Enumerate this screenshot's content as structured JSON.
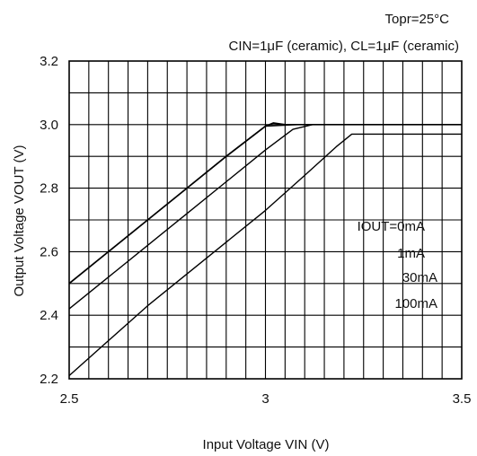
{
  "chart_data": {
    "type": "line",
    "conditions": [
      "Topr=25°C",
      "CIN=1μF (ceramic), CL=1μF (ceramic)"
    ],
    "xlabel": "Input Voltage VIN (V)",
    "ylabel": "Output Voltage VOUT (V)",
    "xlim": [
      2.5,
      3.5
    ],
    "ylim": [
      2.2,
      3.2
    ],
    "x_ticks": [
      2.5,
      3.0,
      3.5
    ],
    "x_tick_labels": [
      "2.5",
      "3",
      "3.5"
    ],
    "y_ticks": [
      2.2,
      2.4,
      2.6,
      2.8,
      3.0,
      3.2
    ],
    "y_tick_labels": [
      "2.2",
      "2.4",
      "2.6",
      "2.8",
      "3.0",
      "3.2"
    ],
    "x_grid_step": 0.05,
    "y_grid_step": 0.1,
    "grid": true,
    "legend_title": "IOUT=0mA",
    "legend_placement": "right",
    "series": [
      {
        "name": "0mA",
        "x": [
          2.5,
          2.6,
          2.7,
          2.8,
          2.9,
          3.0,
          3.02,
          3.05,
          3.5
        ],
        "y": [
          2.5,
          2.6,
          2.7,
          2.8,
          2.9,
          2.995,
          3.005,
          3.0,
          3.0
        ]
      },
      {
        "name": "1mA",
        "x": [
          2.5,
          2.6,
          2.7,
          2.8,
          2.9,
          3.0,
          3.08,
          3.5
        ],
        "y": [
          2.5,
          2.6,
          2.7,
          2.8,
          2.9,
          2.995,
          3.0,
          3.0
        ]
      },
      {
        "name": "30mA",
        "x": [
          2.5,
          2.6,
          2.7,
          2.8,
          2.9,
          3.0,
          3.07,
          3.12,
          3.5
        ],
        "y": [
          2.42,
          2.52,
          2.62,
          2.72,
          2.82,
          2.92,
          2.985,
          3.0,
          3.0
        ]
      },
      {
        "name": "100mA",
        "x": [
          2.5,
          2.6,
          2.7,
          2.8,
          2.9,
          3.0,
          3.1,
          3.18,
          3.22,
          3.5
        ],
        "y": [
          2.21,
          2.32,
          2.43,
          2.53,
          2.63,
          2.73,
          2.84,
          2.93,
          2.97,
          2.97
        ]
      }
    ]
  }
}
